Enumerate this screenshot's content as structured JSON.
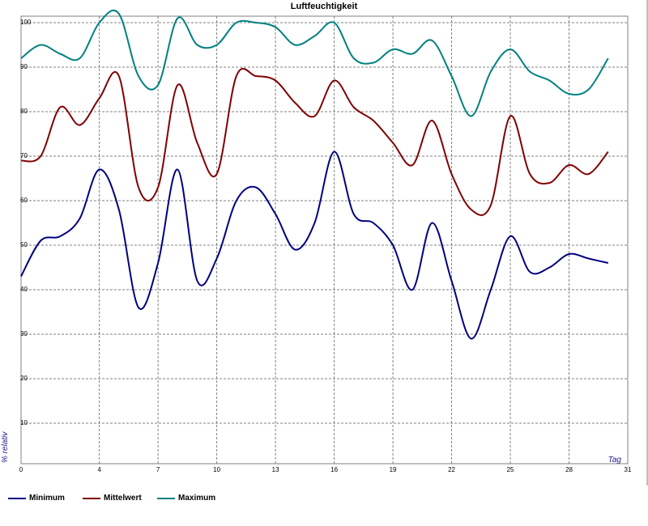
{
  "chart_data": {
    "type": "line",
    "title": "Luftfeuchtigkeit",
    "xlabel": "Tag",
    "ylabel": "% relativ",
    "xlim": [
      0,
      31
    ],
    "ylim": [
      0,
      102
    ],
    "xticks": [
      "0",
      "4",
      "7",
      "10",
      "13",
      "16",
      "19",
      "22",
      "25",
      "28",
      "31"
    ],
    "yticks": [
      "10",
      "20",
      "30",
      "40",
      "50",
      "60",
      "70",
      "80",
      "90",
      "100"
    ],
    "grid": true,
    "legend_position": "bottom",
    "series": [
      {
        "name": "Minimum",
        "color": "#000080",
        "x": [
          0,
          1,
          2,
          3,
          4,
          5,
          6,
          7,
          8,
          9,
          10,
          11,
          12,
          13,
          14,
          15,
          16,
          17,
          18,
          19,
          20,
          21,
          22,
          23,
          24,
          25,
          26,
          27,
          28,
          29,
          30
        ],
        "y": [
          43,
          51,
          52,
          56,
          67,
          58,
          36,
          46,
          67,
          42,
          47,
          60,
          63,
          57,
          49,
          55,
          71,
          57,
          55,
          50,
          40,
          55,
          42,
          29,
          40,
          52,
          44,
          45,
          48,
          47,
          46
        ]
      },
      {
        "name": "Mittelwert",
        "color": "#800000",
        "x": [
          0,
          1,
          2,
          3,
          4,
          5,
          6,
          7,
          8,
          9,
          10,
          11,
          12,
          13,
          14,
          15,
          16,
          17,
          18,
          19,
          20,
          21,
          22,
          23,
          24,
          25,
          26,
          27,
          28,
          29,
          30
        ],
        "y": [
          69,
          70,
          81,
          77,
          83,
          88,
          63,
          63,
          86,
          73,
          66,
          88,
          88,
          87,
          82,
          79,
          87,
          81,
          78,
          73,
          68,
          78,
          66,
          58,
          59,
          79,
          66,
          64,
          68,
          66,
          71
        ]
      },
      {
        "name": "Maximum",
        "color": "#008080",
        "x": [
          0,
          1,
          2,
          3,
          4,
          5,
          6,
          7,
          8,
          9,
          10,
          11,
          12,
          13,
          14,
          15,
          16,
          17,
          18,
          19,
          20,
          21,
          22,
          23,
          24,
          25,
          26,
          27,
          28,
          29,
          30
        ],
        "y": [
          92,
          95,
          93,
          92,
          100,
          102,
          88,
          86,
          101,
          95,
          95,
          100,
          100,
          99,
          95,
          97,
          100,
          92,
          91,
          94,
          93,
          96,
          88,
          79,
          89,
          94,
          89,
          87,
          84,
          85,
          92
        ]
      }
    ]
  }
}
